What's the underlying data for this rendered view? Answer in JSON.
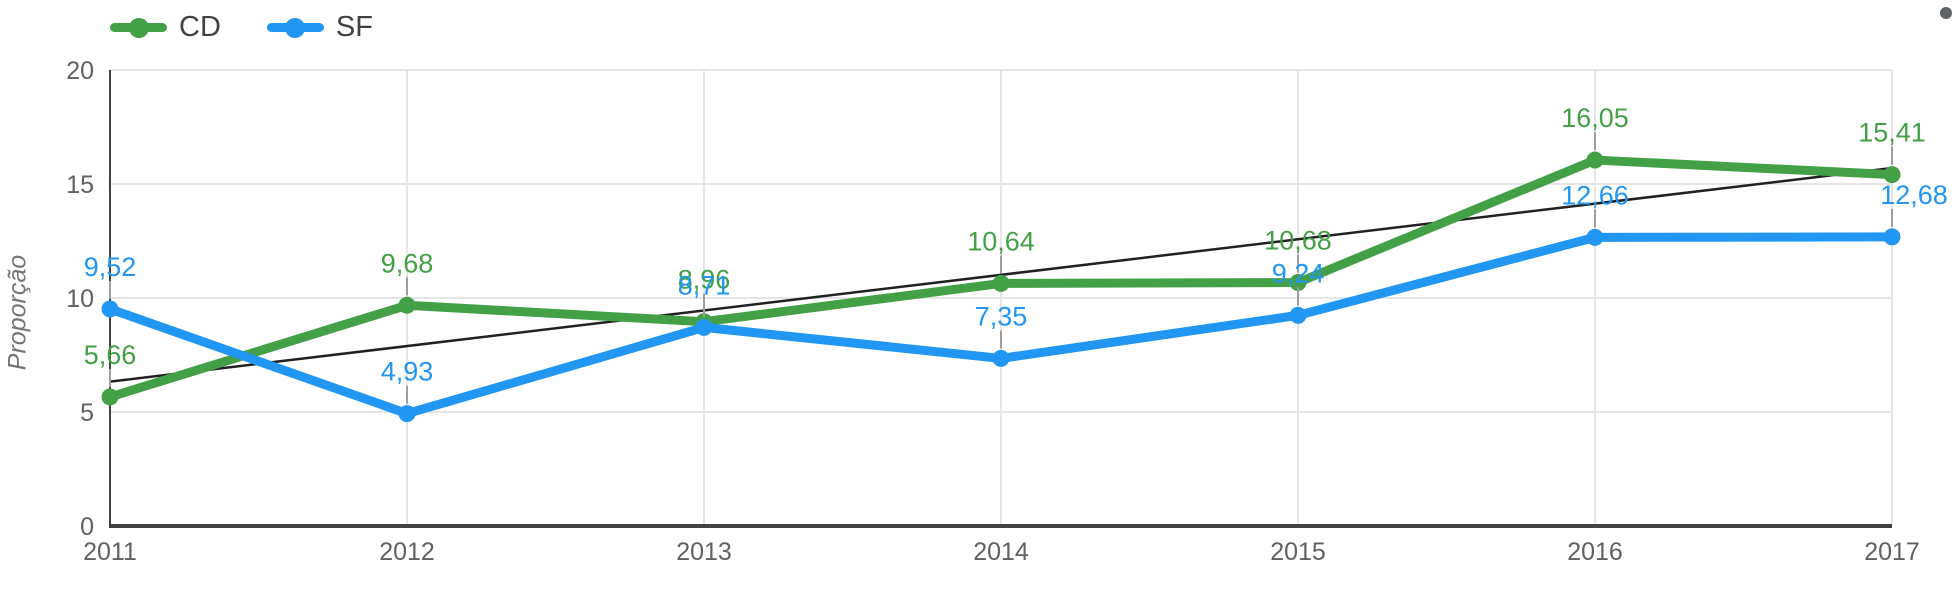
{
  "chart_data": {
    "type": "line",
    "title": "",
    "xlabel": "",
    "ylabel": "Proporção",
    "x": [
      2011,
      2012,
      2013,
      2014,
      2015,
      2016,
      2017
    ],
    "x_labels": [
      "2011",
      "2012",
      "2013",
      "2014",
      "2015",
      "2016",
      "2017"
    ],
    "series": [
      {
        "name": "CD",
        "color": "#43a047",
        "values": [
          5.66,
          9.68,
          8.96,
          10.64,
          10.68,
          16.05,
          15.41
        ],
        "point_labels": [
          "5,66",
          "9,68",
          "8,96",
          "10,64",
          "10,68",
          "16,05",
          "15,41"
        ]
      },
      {
        "name": "SF",
        "color": "#2196f3",
        "values": [
          9.52,
          4.93,
          8.71,
          7.35,
          9.24,
          12.66,
          12.68
        ],
        "point_labels": [
          "9,52",
          "4,93",
          "8,71",
          "7,35",
          "9,24",
          "12,66",
          "12,68"
        ]
      }
    ],
    "trendline": {
      "series": "CD",
      "color": "#212121",
      "start_value": 6.33,
      "end_value": 15.7
    },
    "y_ticks": [
      0,
      5,
      10,
      15,
      20
    ],
    "y_tick_labels": [
      "0",
      "5",
      "10",
      "15",
      "20"
    ],
    "ylim": [
      0,
      20
    ],
    "grid": true,
    "legend_position": "top-left"
  },
  "colors": {
    "grid": "#e6e6e6",
    "axis": "#424242",
    "tick_text": "#616161",
    "axis_title": "#757575",
    "annotation_stem": "#9e9e9e",
    "legend_text": "#424242",
    "corner_dot": "#5f6368"
  }
}
